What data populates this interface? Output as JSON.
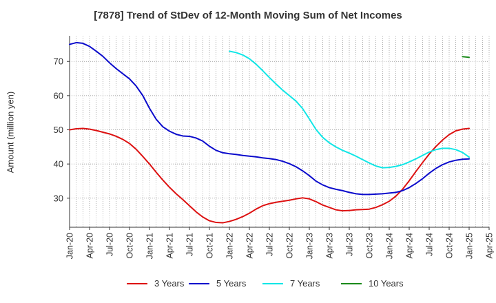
{
  "chart_data": {
    "type": "line",
    "title": "[7878]  Trend of StDev of 12-Month Moving Sum of Net Incomes",
    "xlabel": "",
    "ylabel": "Amount (million yen)",
    "x_ticks": [
      "Jan-20",
      "Apr-20",
      "Jul-20",
      "Oct-20",
      "Jan-21",
      "Apr-21",
      "Jul-21",
      "Oct-21",
      "Jan-22",
      "Apr-22",
      "Jul-22",
      "Oct-22",
      "Jan-23",
      "Apr-23",
      "Jul-23",
      "Oct-23",
      "Jan-24",
      "Apr-24",
      "Jul-24",
      "Oct-24",
      "Jan-25",
      "Apr-25"
    ],
    "y_ticks": [
      30,
      40,
      50,
      60,
      70
    ],
    "ylim": [
      21.5,
      77.5
    ],
    "xlim": [
      "2020-01",
      "2025-04"
    ],
    "grid": true,
    "legend_position": "bottom",
    "series": [
      {
        "name": "3 Years",
        "color": "#dd1111",
        "points": [
          [
            "2020-01",
            50.0
          ],
          [
            "2020-02",
            50.3
          ],
          [
            "2020-03",
            50.4
          ],
          [
            "2020-04",
            50.2
          ],
          [
            "2020-05",
            49.8
          ],
          [
            "2020-06",
            49.3
          ],
          [
            "2020-07",
            48.8
          ],
          [
            "2020-08",
            48.1
          ],
          [
            "2020-09",
            47.2
          ],
          [
            "2020-10",
            46.0
          ],
          [
            "2020-11",
            44.3
          ],
          [
            "2020-12",
            42.2
          ],
          [
            "2021-01",
            40.0
          ],
          [
            "2021-02",
            37.6
          ],
          [
            "2021-03",
            35.3
          ],
          [
            "2021-04",
            33.2
          ],
          [
            "2021-05",
            31.3
          ],
          [
            "2021-06",
            29.6
          ],
          [
            "2021-07",
            27.8
          ],
          [
            "2021-08",
            26.0
          ],
          [
            "2021-09",
            24.5
          ],
          [
            "2021-10",
            23.4
          ],
          [
            "2021-11",
            22.9
          ],
          [
            "2021-12",
            22.8
          ],
          [
            "2022-01",
            23.2
          ],
          [
            "2022-02",
            23.8
          ],
          [
            "2022-03",
            24.6
          ],
          [
            "2022-04",
            25.6
          ],
          [
            "2022-05",
            26.8
          ],
          [
            "2022-06",
            27.8
          ],
          [
            "2022-07",
            28.4
          ],
          [
            "2022-08",
            28.8
          ],
          [
            "2022-09",
            29.1
          ],
          [
            "2022-10",
            29.4
          ],
          [
            "2022-11",
            29.8
          ],
          [
            "2022-12",
            30.1
          ],
          [
            "2023-01",
            29.8
          ],
          [
            "2023-02",
            29.0
          ],
          [
            "2023-03",
            28.0
          ],
          [
            "2023-04",
            27.3
          ],
          [
            "2023-05",
            26.6
          ],
          [
            "2023-06",
            26.3
          ],
          [
            "2023-07",
            26.4
          ],
          [
            "2023-08",
            26.6
          ],
          [
            "2023-09",
            26.7
          ],
          [
            "2023-10",
            26.8
          ],
          [
            "2023-11",
            27.3
          ],
          [
            "2023-12",
            28.1
          ],
          [
            "2024-01",
            29.1
          ],
          [
            "2024-02",
            30.6
          ],
          [
            "2024-03",
            32.6
          ],
          [
            "2024-04",
            35.1
          ],
          [
            "2024-05",
            37.8
          ],
          [
            "2024-06",
            40.4
          ],
          [
            "2024-07",
            42.9
          ],
          [
            "2024-08",
            45.1
          ],
          [
            "2024-09",
            47.0
          ],
          [
            "2024-10",
            48.6
          ],
          [
            "2024-11",
            49.7
          ],
          [
            "2024-12",
            50.2
          ],
          [
            "2025-01",
            50.4
          ]
        ]
      },
      {
        "name": "5 Years",
        "color": "#0b0bcc",
        "points": [
          [
            "2020-01",
            75.0
          ],
          [
            "2020-02",
            75.5
          ],
          [
            "2020-03",
            75.3
          ],
          [
            "2020-04",
            74.4
          ],
          [
            "2020-05",
            73.0
          ],
          [
            "2020-06",
            71.5
          ],
          [
            "2020-07",
            69.6
          ],
          [
            "2020-08",
            67.9
          ],
          [
            "2020-09",
            66.4
          ],
          [
            "2020-10",
            64.9
          ],
          [
            "2020-11",
            62.8
          ],
          [
            "2020-12",
            60.0
          ],
          [
            "2021-01",
            56.3
          ],
          [
            "2021-02",
            53.1
          ],
          [
            "2021-03",
            50.9
          ],
          [
            "2021-04",
            49.6
          ],
          [
            "2021-05",
            48.7
          ],
          [
            "2021-06",
            48.2
          ],
          [
            "2021-07",
            48.1
          ],
          [
            "2021-08",
            47.6
          ],
          [
            "2021-09",
            46.7
          ],
          [
            "2021-10",
            45.2
          ],
          [
            "2021-11",
            44.0
          ],
          [
            "2021-12",
            43.3
          ],
          [
            "2022-01",
            43.0
          ],
          [
            "2022-02",
            42.8
          ],
          [
            "2022-03",
            42.5
          ],
          [
            "2022-04",
            42.3
          ],
          [
            "2022-05",
            42.1
          ],
          [
            "2022-06",
            41.8
          ],
          [
            "2022-07",
            41.6
          ],
          [
            "2022-08",
            41.3
          ],
          [
            "2022-09",
            40.8
          ],
          [
            "2022-10",
            40.1
          ],
          [
            "2022-11",
            39.2
          ],
          [
            "2022-12",
            38.0
          ],
          [
            "2023-01",
            36.6
          ],
          [
            "2023-02",
            35.0
          ],
          [
            "2023-03",
            33.9
          ],
          [
            "2023-04",
            33.1
          ],
          [
            "2023-05",
            32.6
          ],
          [
            "2023-06",
            32.2
          ],
          [
            "2023-07",
            31.7
          ],
          [
            "2023-08",
            31.3
          ],
          [
            "2023-09",
            31.1
          ],
          [
            "2023-10",
            31.1
          ],
          [
            "2023-11",
            31.2
          ],
          [
            "2023-12",
            31.3
          ],
          [
            "2024-01",
            31.5
          ],
          [
            "2024-02",
            31.7
          ],
          [
            "2024-03",
            32.2
          ],
          [
            "2024-04",
            33.1
          ],
          [
            "2024-05",
            34.3
          ],
          [
            "2024-06",
            35.7
          ],
          [
            "2024-07",
            37.3
          ],
          [
            "2024-08",
            38.7
          ],
          [
            "2024-09",
            39.8
          ],
          [
            "2024-10",
            40.6
          ],
          [
            "2024-11",
            41.1
          ],
          [
            "2024-12",
            41.4
          ],
          [
            "2025-01",
            41.5
          ]
        ]
      },
      {
        "name": "7 Years",
        "color": "#11e6e6",
        "points": [
          [
            "2022-01",
            73.0
          ],
          [
            "2022-02",
            72.6
          ],
          [
            "2022-03",
            71.9
          ],
          [
            "2022-04",
            70.8
          ],
          [
            "2022-05",
            69.2
          ],
          [
            "2022-06",
            67.3
          ],
          [
            "2022-07",
            65.3
          ],
          [
            "2022-08",
            63.4
          ],
          [
            "2022-09",
            61.6
          ],
          [
            "2022-10",
            60.0
          ],
          [
            "2022-11",
            58.4
          ],
          [
            "2022-12",
            56.2
          ],
          [
            "2023-01",
            53.2
          ],
          [
            "2023-02",
            50.1
          ],
          [
            "2023-03",
            47.8
          ],
          [
            "2023-04",
            46.2
          ],
          [
            "2023-05",
            45.0
          ],
          [
            "2023-06",
            44.0
          ],
          [
            "2023-07",
            43.2
          ],
          [
            "2023-08",
            42.3
          ],
          [
            "2023-09",
            41.3
          ],
          [
            "2023-10",
            40.3
          ],
          [
            "2023-11",
            39.4
          ],
          [
            "2023-12",
            38.9
          ],
          [
            "2024-01",
            39.0
          ],
          [
            "2024-02",
            39.3
          ],
          [
            "2024-03",
            39.8
          ],
          [
            "2024-04",
            40.6
          ],
          [
            "2024-05",
            41.5
          ],
          [
            "2024-06",
            42.5
          ],
          [
            "2024-07",
            43.5
          ],
          [
            "2024-08",
            44.2
          ],
          [
            "2024-09",
            44.6
          ],
          [
            "2024-10",
            44.6
          ],
          [
            "2024-11",
            44.2
          ],
          [
            "2024-12",
            43.4
          ],
          [
            "2025-01",
            42.0
          ]
        ]
      },
      {
        "name": "10 Years",
        "color": "#1a8a1a",
        "points": [
          [
            "2024-12",
            71.4
          ],
          [
            "2025-01",
            71.2
          ]
        ]
      }
    ]
  }
}
